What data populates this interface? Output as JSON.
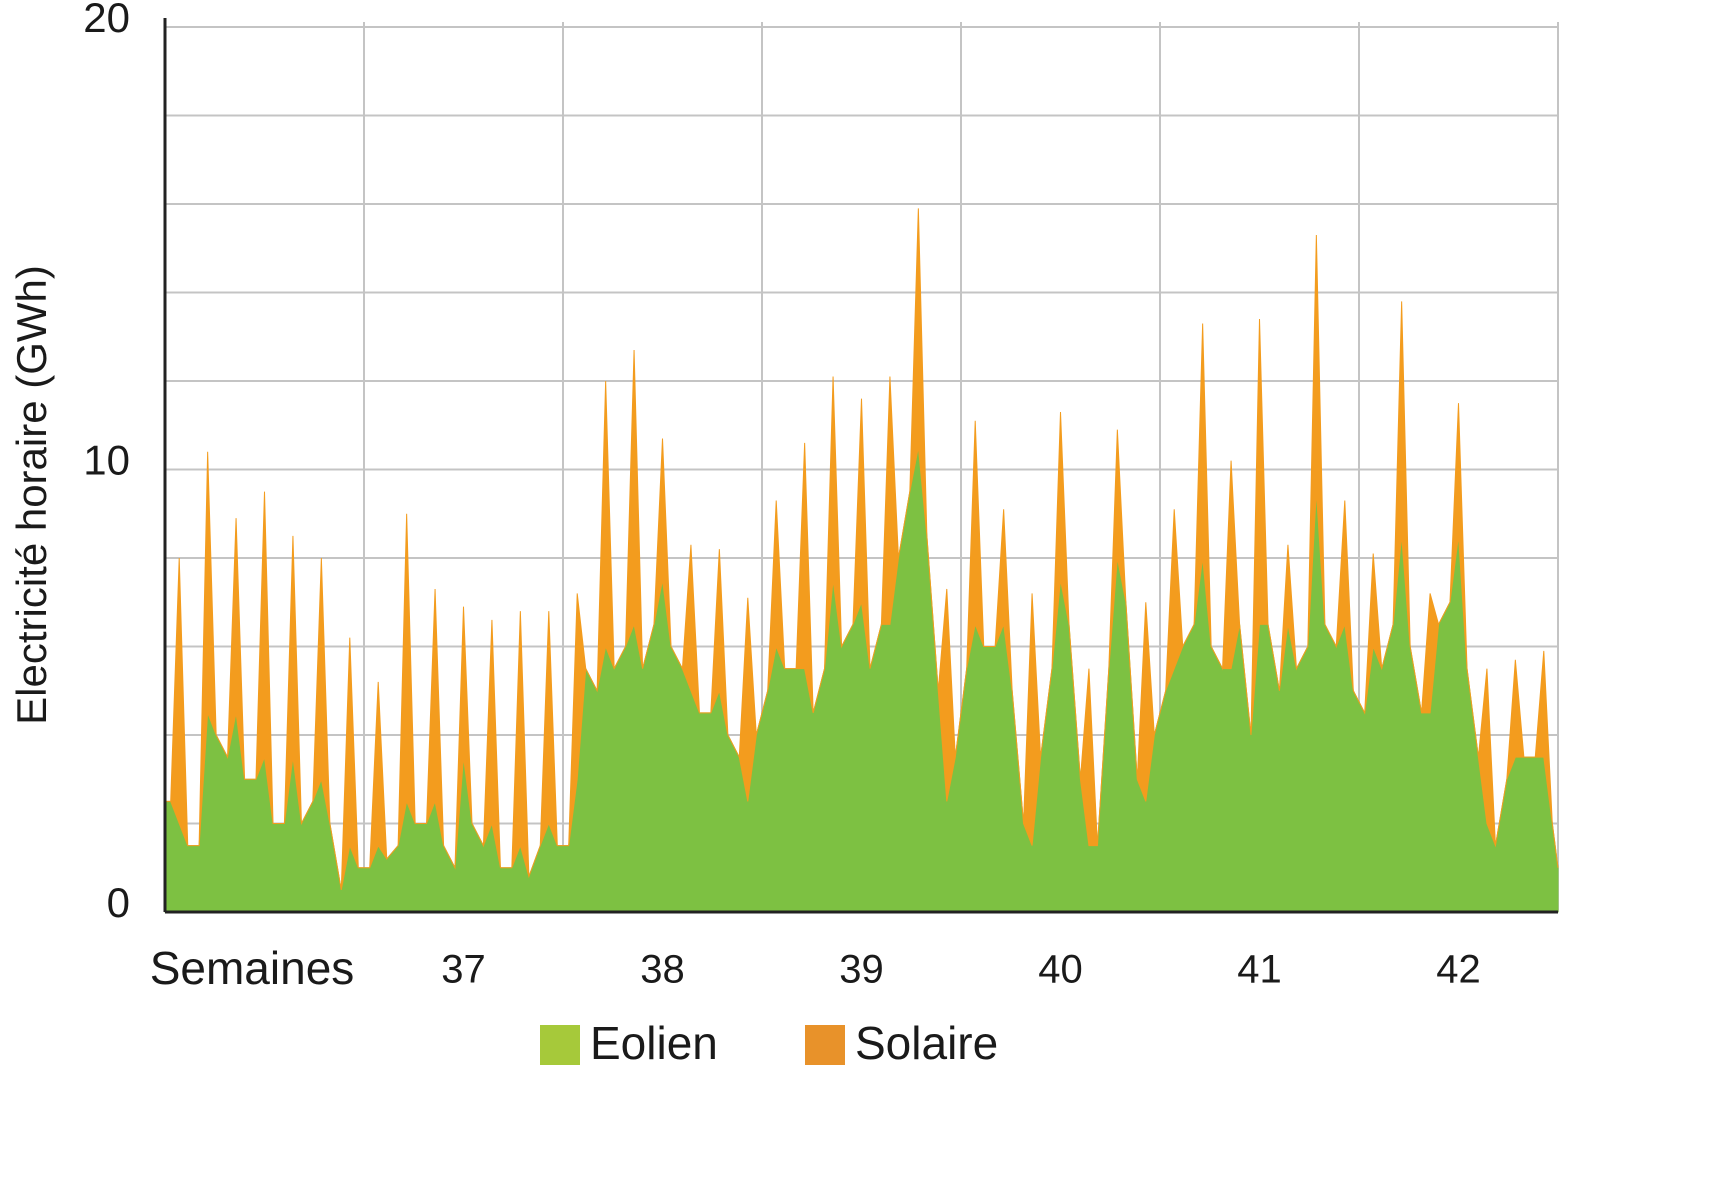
{
  "chart_data": {
    "type": "stacked_area",
    "y_label": "Electricité horaire (GWh)",
    "x_label": "Semaines",
    "xlim": [
      0,
      49
    ],
    "xticks": [
      0,
      7,
      14,
      21,
      28,
      35,
      42,
      49
    ],
    "week_labels": [
      {
        "value": 10.5,
        "label": "37"
      },
      {
        "value": 17.5,
        "label": "38"
      },
      {
        "value": 24.5,
        "label": "39"
      },
      {
        "value": 31.5,
        "label": "40"
      },
      {
        "value": 38.5,
        "label": "41"
      },
      {
        "value": 45.5,
        "label": "42"
      }
    ],
    "ylim": [
      0,
      20
    ],
    "yticks": [
      0,
      10,
      20
    ],
    "ygrid": [
      2,
      4,
      6,
      8,
      10,
      12,
      14,
      16,
      18,
      20
    ],
    "grid": true,
    "x": [
      0,
      0.2,
      0.5,
      0.8,
      1.2,
      1.5,
      1.8,
      2.2,
      2.5,
      2.8,
      3.2,
      3.5,
      3.8,
      4.2,
      4.5,
      4.8,
      5.2,
      5.5,
      5.8,
      6.2,
      6.5,
      6.8,
      7.2,
      7.5,
      7.8,
      8.2,
      8.5,
      8.8,
      9.2,
      9.5,
      9.8,
      10.2,
      10.5,
      10.8,
      11.2,
      11.5,
      11.8,
      12.2,
      12.5,
      12.8,
      13.2,
      13.5,
      13.8,
      14.2,
      14.5,
      14.8,
      15.2,
      15.5,
      15.8,
      16.2,
      16.5,
      16.8,
      17.2,
      17.5,
      17.8,
      18.2,
      18.5,
      18.8,
      19.2,
      19.5,
      19.8,
      20.2,
      20.5,
      20.8,
      21.2,
      21.5,
      21.8,
      22.2,
      22.5,
      22.8,
      23.2,
      23.5,
      23.8,
      24.2,
      24.5,
      24.8,
      25.2,
      25.5,
      25.8,
      26.2,
      26.5,
      26.8,
      27.2,
      27.5,
      27.8,
      28.2,
      28.5,
      28.8,
      29.2,
      29.5,
      29.8,
      30.2,
      30.5,
      30.8,
      31.2,
      31.5,
      31.8,
      32.2,
      32.5,
      32.8,
      33.2,
      33.5,
      33.8,
      34.2,
      34.5,
      34.8,
      35.2,
      35.5,
      35.8,
      36.2,
      36.5,
      36.8,
      37.2,
      37.5,
      37.8,
      38.2,
      38.5,
      38.8,
      39.2,
      39.5,
      39.8,
      40.2,
      40.5,
      40.8,
      41.2,
      41.5,
      41.8,
      42.2,
      42.5,
      42.8,
      43.2,
      43.5,
      43.8,
      44.2,
      44.5,
      44.8,
      45.2,
      45.5,
      45.8,
      46.2,
      46.5,
      46.8,
      47.2,
      47.5,
      47.8,
      48.2,
      48.5,
      48.8,
      49
    ],
    "series": [
      {
        "name": "Eolien",
        "color": "#7dc142",
        "legend_color": "#a6c93a",
        "values": [
          2.5,
          2.5,
          2.0,
          1.5,
          1.5,
          4.5,
          4.0,
          3.5,
          4.5,
          3.0,
          3.0,
          3.5,
          2.0,
          2.0,
          3.5,
          2.0,
          2.5,
          3.0,
          2.0,
          0.5,
          1.5,
          1.0,
          1.0,
          1.5,
          1.2,
          1.5,
          2.5,
          2.0,
          2.0,
          2.5,
          1.5,
          1.0,
          3.5,
          2.0,
          1.5,
          2.0,
          1.0,
          1.0,
          1.5,
          0.8,
          1.5,
          2.0,
          1.5,
          1.5,
          3.0,
          5.5,
          5.0,
          6.0,
          5.5,
          6.0,
          6.5,
          5.5,
          6.5,
          7.5,
          6.0,
          5.5,
          5.0,
          4.5,
          4.5,
          5.0,
          4.0,
          3.5,
          2.5,
          4.0,
          5.0,
          6.0,
          5.5,
          5.5,
          5.5,
          4.5,
          5.5,
          7.5,
          6.0,
          6.5,
          7.0,
          5.5,
          6.5,
          6.5,
          8.0,
          9.5,
          10.5,
          8.5,
          5.0,
          2.5,
          3.5,
          5.5,
          6.5,
          6.0,
          6.0,
          6.5,
          5.0,
          2.0,
          1.5,
          3.5,
          5.5,
          7.5,
          6.5,
          3.0,
          1.5,
          1.5,
          5.5,
          8.0,
          7.0,
          3.0,
          2.5,
          4.0,
          5.0,
          5.5,
          6.0,
          6.5,
          8.0,
          6.0,
          5.5,
          5.5,
          6.5,
          4.0,
          6.5,
          6.5,
          5.0,
          6.5,
          5.5,
          6.0,
          9.5,
          6.5,
          6.0,
          6.5,
          5.0,
          4.5,
          6.0,
          5.5,
          6.5,
          8.5,
          6.0,
          4.5,
          4.5,
          6.5,
          7.0,
          8.5,
          5.5,
          3.5,
          2.0,
          1.5,
          3.0,
          3.5,
          3.5,
          3.5,
          3.5,
          2.0,
          1.0
        ]
      },
      {
        "name": "Solaire",
        "color": "#f39c1e",
        "legend_color": "#e8922a",
        "values": [
          0,
          0,
          6.0,
          0,
          0,
          5.9,
          0,
          0,
          4.4,
          0,
          0,
          6.0,
          0,
          0,
          5.0,
          0,
          0,
          5.0,
          0,
          0,
          4.7,
          0,
          0,
          3.7,
          0,
          0,
          6.5,
          0,
          0,
          4.8,
          0,
          0,
          3.4,
          0,
          0,
          4.6,
          0,
          0,
          5.3,
          0,
          0,
          4.8,
          0,
          0,
          4.2,
          0,
          0,
          6.0,
          0,
          0,
          6.2,
          0,
          0,
          3.2,
          0,
          0,
          3.3,
          0,
          0,
          3.2,
          0,
          0,
          4.6,
          0,
          0,
          3.3,
          0,
          0,
          5.1,
          0,
          0,
          4.6,
          0,
          0,
          4.6,
          0,
          0,
          5.6,
          0,
          0,
          5.4,
          0,
          0,
          4.8,
          0,
          0,
          4.6,
          0,
          0,
          2.6,
          0,
          0,
          5.7,
          0,
          0,
          3.8,
          0,
          0,
          4.0,
          0,
          0,
          2.9,
          0,
          0,
          4.5,
          0,
          0,
          3.6,
          0,
          0,
          5.3,
          0,
          0,
          4.7,
          0,
          0,
          6.9,
          0,
          0,
          1.8,
          0,
          0,
          5.8,
          0,
          0,
          2.8,
          0,
          0,
          2.1,
          0,
          0,
          5.3,
          0,
          0,
          2.7,
          0,
          0,
          3.0,
          0,
          0,
          3.5,
          0,
          0,
          2.2,
          0,
          0,
          2.4,
          0,
          0
        ]
      }
    ]
  }
}
